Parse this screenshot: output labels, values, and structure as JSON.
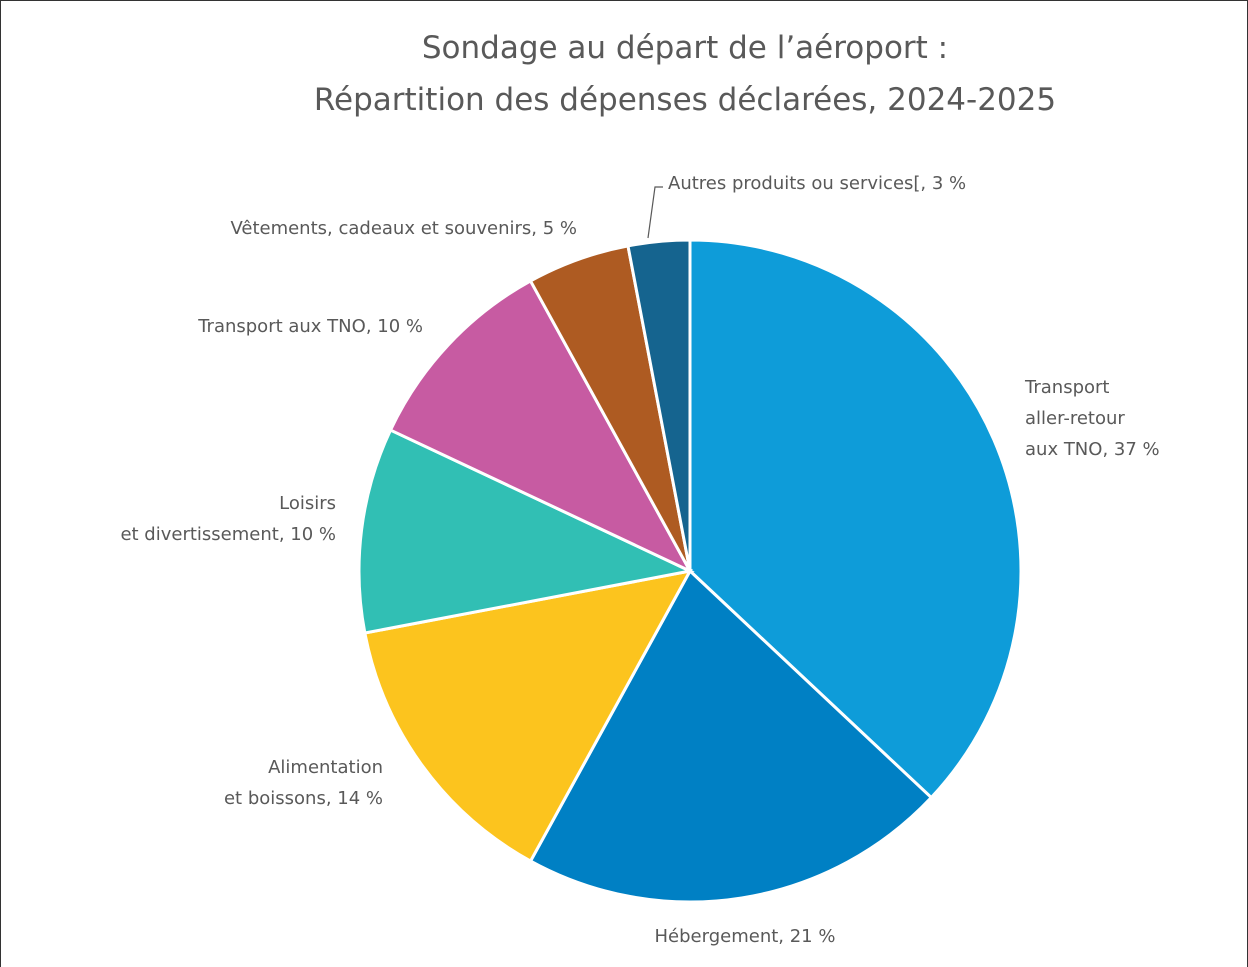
{
  "chart_data": {
    "type": "pie",
    "title": [
      "Sondage au départ de l’aéroport :",
      "Répartition des dépenses déclarées, 2024-2025"
    ],
    "values": [
      37,
      21,
      14,
      10,
      10,
      5,
      3
    ],
    "value_labels": [
      [
        "Transport",
        "aller-retour",
        "aux TNO, 37 %"
      ],
      [
        "Hébergement, 21 %"
      ],
      [
        "Alimentation",
        "et boissons, 14 %"
      ],
      [
        "Loisirs",
        "et divertissement, 10 %"
      ],
      [
        "Transport aux TNO, 10 %"
      ],
      [
        "Vêtements, cadeaux et souvenirs, 5 %"
      ],
      [
        "Autres produits ou services[, 3 %"
      ]
    ],
    "colors": [
      "#0e9cd9",
      "#0080c4",
      "#fcc41e",
      "#31bfb4",
      "#c75ba2",
      "#ae5b22",
      "#15648f"
    ]
  }
}
